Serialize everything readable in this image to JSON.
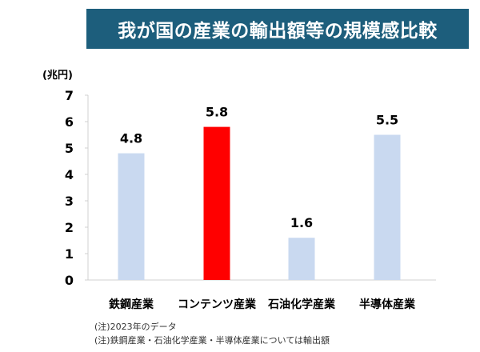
{
  "title": "我が国の産業の輸出額等の規模感比較",
  "colors": {
    "title_bg": "#1d5e7c",
    "bar_default": "#c9d9f0",
    "bar_highlight": "#ff0000",
    "axis": "#d0d0d0",
    "text": "#000000"
  },
  "chart_data": {
    "type": "bar",
    "ylabel": "(兆円)",
    "xlabel": "",
    "ylim": [
      0,
      7
    ],
    "yticks": [
      0,
      1,
      2,
      3,
      4,
      5,
      6,
      7
    ],
    "categories": [
      "鉄鋼産業",
      "コンテンツ産業",
      "石油化学産業",
      "半導体産業"
    ],
    "values": [
      4.8,
      5.8,
      1.6,
      5.5
    ],
    "data_labels": [
      "4.8",
      "5.8",
      "1.6",
      "5.5"
    ],
    "highlight": "コンテンツ産業",
    "grid": false,
    "legend": "none"
  },
  "notes": [
    "(注)2023年のデータ",
    "(注)鉄鋼産業・石油化学産業・半導体産業については輸出額"
  ]
}
